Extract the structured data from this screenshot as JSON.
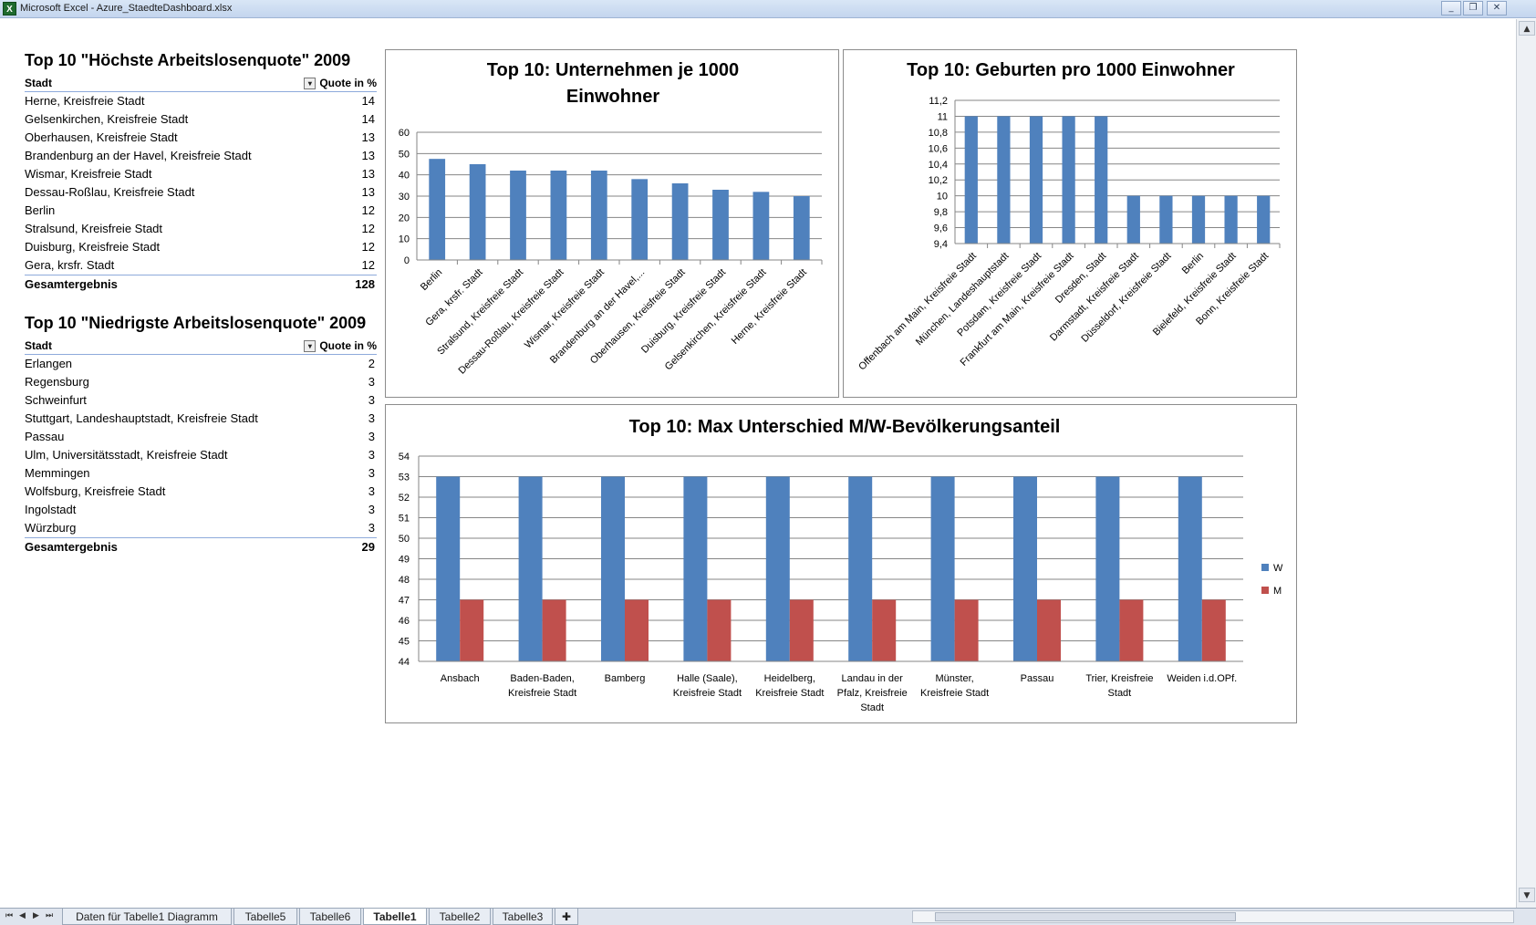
{
  "window": {
    "title": "Microsoft Excel - Azure_StaedteDashboard.xlsx",
    "icon": "excel-icon"
  },
  "pivot_high": {
    "title": "Top 10 \"Höchste Arbeitslosenquote\" 2009",
    "col1": "Stadt",
    "col2": "Quote in %",
    "rows": [
      {
        "city": "Herne, Kreisfreie Stadt",
        "value": "14"
      },
      {
        "city": "Gelsenkirchen, Kreisfreie Stadt",
        "value": "14"
      },
      {
        "city": "Oberhausen, Kreisfreie Stadt",
        "value": "13"
      },
      {
        "city": "Brandenburg an der Havel, Kreisfreie Stadt",
        "value": "13"
      },
      {
        "city": "Wismar, Kreisfreie Stadt",
        "value": "13"
      },
      {
        "city": "Dessau-Roßlau, Kreisfreie Stadt",
        "value": "13"
      },
      {
        "city": "Berlin",
        "value": "12"
      },
      {
        "city": "Stralsund, Kreisfreie Stadt",
        "value": "12"
      },
      {
        "city": "Duisburg, Kreisfreie Stadt",
        "value": "12"
      },
      {
        "city": "Gera, krsfr. Stadt",
        "value": "12"
      }
    ],
    "total_label": "Gesamtergebnis",
    "total_value": "128"
  },
  "pivot_low": {
    "title": "Top 10 \"Niedrigste Arbeitslosenquote\" 2009",
    "col1": "Stadt",
    "col2": "Quote in %",
    "rows": [
      {
        "city": "Erlangen",
        "value": "2"
      },
      {
        "city": "Regensburg",
        "value": "3"
      },
      {
        "city": "Schweinfurt",
        "value": "3"
      },
      {
        "city": "Stuttgart, Landeshauptstadt, Kreisfreie Stadt",
        "value": "3"
      },
      {
        "city": "Passau",
        "value": "3"
      },
      {
        "city": "Ulm, Universitätsstadt, Kreisfreie Stadt",
        "value": "3"
      },
      {
        "city": "Memmingen",
        "value": "3"
      },
      {
        "city": "Wolfsburg, Kreisfreie Stadt",
        "value": "3"
      },
      {
        "city": "Ingolstadt",
        "value": "3"
      },
      {
        "city": "Würzburg",
        "value": "3"
      }
    ],
    "total_label": "Gesamtergebnis",
    "total_value": "29"
  },
  "chart_data": [
    {
      "type": "bar",
      "title": "Top 10: Unternehmen je 1000 Einwohner",
      "title_lines": [
        "Top 10: Unternehmen je 1000",
        "Einwohner"
      ],
      "categories": [
        "Berlin",
        "Gera, krsfr. Stadt",
        "Stralsund, Kreisfreie Stadt",
        "Dessau-Roßlau, Kreisfreie Stadt",
        "Wismar, Kreisfreie Stadt",
        "Brandenburg an der Havel,...",
        "Oberhausen, Kreisfreie Stadt",
        "Duisburg, Kreisfreie Stadt",
        "Gelsenkirchen, Kreisfreie Stadt",
        "Herne, Kreisfreie Stadt"
      ],
      "values": [
        47.5,
        45,
        42,
        42,
        42,
        38,
        36,
        33,
        32,
        30
      ],
      "ylim": [
        0,
        60
      ],
      "yticks": [
        "0",
        "10",
        "20",
        "30",
        "40",
        "50",
        "60"
      ],
      "color": "#4f81bd",
      "grid": true
    },
    {
      "type": "bar",
      "title": "Top 10: Geburten pro 1000 Einwohner",
      "categories": [
        "Offenbach am Main, Kreisfreie Stadt",
        "München, Landeshauptstadt",
        "Potsdam, Kreisfreie Stadt",
        "Frankfurt am Main, Kreisfreie Stadt",
        "Dresden, Stadt",
        "Darmstadt, Kreisfreie Stadt",
        "Düsseldorf, Kreisfreie Stadt",
        "Berlin",
        "Bielefeld, Kreisfreie Stadt",
        "Bonn, Kreisfreie Stadt"
      ],
      "values": [
        11,
        11,
        11,
        11,
        11,
        10,
        10,
        10,
        10,
        10
      ],
      "ylim": [
        9.4,
        11.2
      ],
      "yticks": [
        "9,4",
        "9,6",
        "9,8",
        "10",
        "10,2",
        "10,4",
        "10,6",
        "10,8",
        "11",
        "11,2"
      ],
      "color": "#4f81bd",
      "grid": true
    },
    {
      "type": "bar",
      "title": "Top 10: Max Unterschied M/W-Bevölkerungsanteil",
      "categories": [
        "Ansbach",
        "Baden-Baden, Kreisfreie Stadt",
        "Bamberg",
        "Halle (Saale), Kreisfreie Stadt",
        "Heidelberg, Kreisfreie Stadt",
        "Landau in der Pfalz, Kreisfreie Stadt",
        "Münster, Kreisfreie Stadt",
        "Passau",
        "Trier, Kreisfreie Stadt",
        "Weiden i.d.OPf."
      ],
      "category_lines": [
        [
          "Ansbach"
        ],
        [
          "Baden-Baden,",
          "Kreisfreie Stadt"
        ],
        [
          "Bamberg"
        ],
        [
          "Halle (Saale),",
          "Kreisfreie Stadt"
        ],
        [
          "Heidelberg,",
          "Kreisfreie Stadt"
        ],
        [
          "Landau in der",
          "Pfalz, Kreisfreie",
          "Stadt"
        ],
        [
          "Münster,",
          "Kreisfreie Stadt"
        ],
        [
          "Passau"
        ],
        [
          "Trier, Kreisfreie",
          "Stadt"
        ],
        [
          "Weiden i.d.OPf."
        ]
      ],
      "series": [
        {
          "name": "W",
          "values": [
            53,
            53,
            53,
            53,
            53,
            53,
            53,
            53,
            53,
            53
          ],
          "color": "#4f81bd"
        },
        {
          "name": "M",
          "values": [
            47,
            47,
            47,
            47,
            47,
            47,
            47,
            47,
            47,
            47
          ],
          "color": "#c0504d"
        }
      ],
      "ylim": [
        44,
        54
      ],
      "yticks": [
        "44",
        "45",
        "46",
        "47",
        "48",
        "49",
        "50",
        "51",
        "52",
        "53",
        "54"
      ],
      "legend": "right",
      "grid": true
    }
  ],
  "sheet_tabs": {
    "tabs": [
      "Daten für Tabelle1 Diagramm",
      "Tabelle5",
      "Tabelle6",
      "Tabelle1",
      "Tabelle2",
      "Tabelle3"
    ],
    "active": "Tabelle1"
  }
}
